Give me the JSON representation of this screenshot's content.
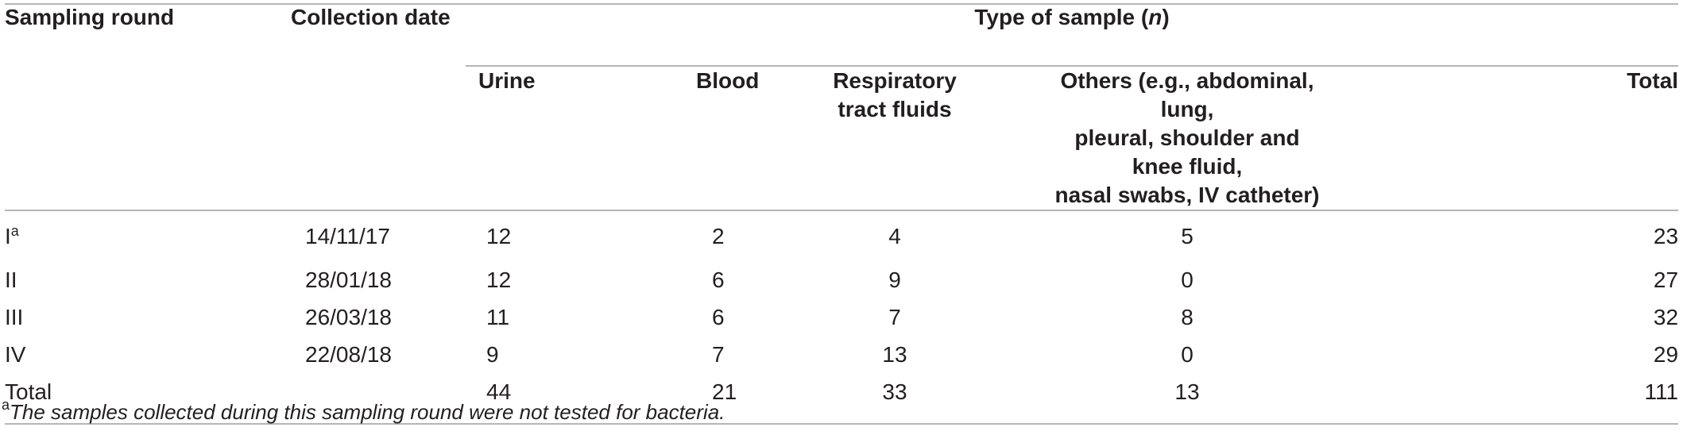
{
  "table": {
    "header": {
      "sampling_round": "Sampling round",
      "collection_date": "Collection date",
      "type_of_sample_prefix": "Type of sample (",
      "type_of_sample_n": "n",
      "type_of_sample_suffix": ")",
      "urine": "Urine",
      "blood": "Blood",
      "respiratory_line1": "Respiratory",
      "respiratory_line2": "tract fluids",
      "others_line1": "Others (e.g., abdominal, lung,",
      "others_line2": "pleural, shoulder and knee fluid,",
      "others_line3": "nasal swabs, IV catheter)",
      "total": "Total"
    },
    "rows": [
      {
        "round": "I",
        "round_sup": "a",
        "date": "14/11/17",
        "urine": "12",
        "blood": "2",
        "respiratory": "4",
        "others": "5",
        "total": "23"
      },
      {
        "round": "II",
        "round_sup": "",
        "date": "28/01/18",
        "urine": "12",
        "blood": "6",
        "respiratory": "9",
        "others": "0",
        "total": "27"
      },
      {
        "round": "III",
        "round_sup": "",
        "date": "26/03/18",
        "urine": "11",
        "blood": "6",
        "respiratory": "7",
        "others": "8",
        "total": "32"
      },
      {
        "round": "IV",
        "round_sup": "",
        "date": "22/08/18",
        "urine": "9",
        "blood": "7",
        "respiratory": "13",
        "others": "0",
        "total": "29"
      }
    ],
    "total_row": {
      "label": "Total",
      "date": "",
      "urine": "44",
      "blood": "21",
      "respiratory": "33",
      "others": "13",
      "total": "111"
    }
  },
  "footnote": {
    "marker": "a",
    "text": "The samples collected during this sampling round were not tested for bacteria."
  }
}
